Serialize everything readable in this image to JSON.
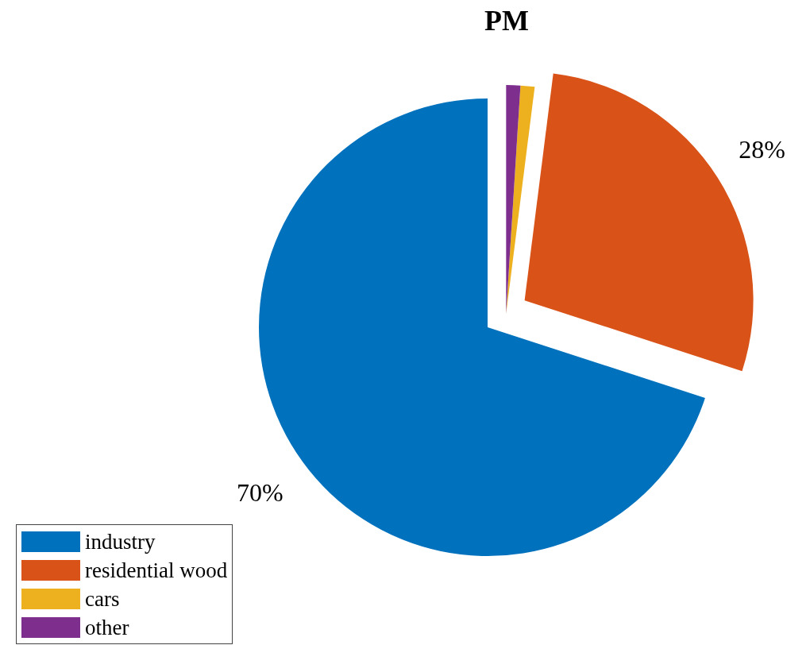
{
  "chart_data": {
    "type": "pie",
    "title": "PM",
    "categories": [
      "industry",
      "residential wood",
      "cars",
      "other"
    ],
    "values": [
      70,
      28,
      1,
      1
    ],
    "colors": [
      "#0072bd",
      "#d95319",
      "#edb120",
      "#7e2f8e"
    ],
    "value_labels": [
      "70%",
      "28%",
      null,
      null
    ],
    "legend": "bottom left"
  }
}
